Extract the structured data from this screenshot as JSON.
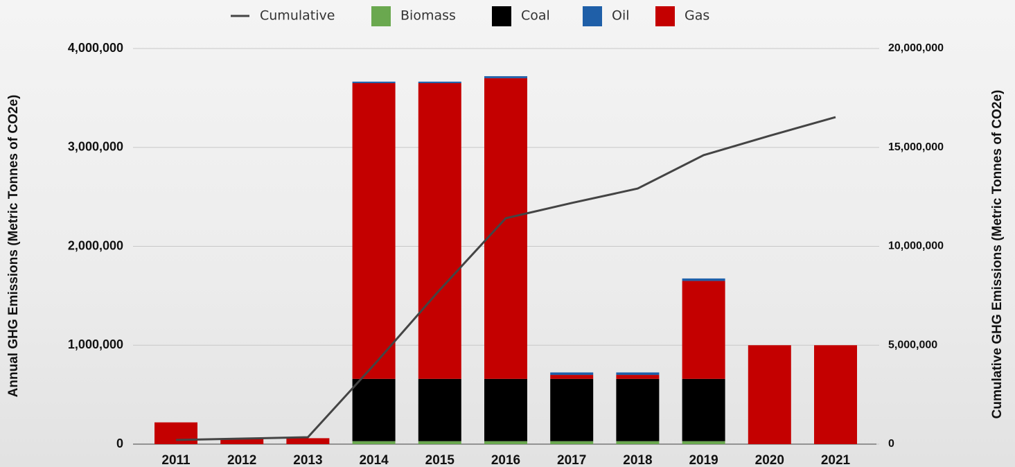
{
  "chart_data": {
    "type": "bar",
    "stacked": true,
    "categories": [
      "2011",
      "2012",
      "2013",
      "2014",
      "2015",
      "2016",
      "2017",
      "2018",
      "2019",
      "2020",
      "2021"
    ],
    "y_label": "Annual GHG Emissions (Metric Tonnes of CO2e)",
    "y2_label": "Cumulative GHG Emissions (Metric Tonnes of CO2e)",
    "series": [
      {
        "name": "Cumulative",
        "type": "line",
        "axis": "y2",
        "color": "#444444",
        "values": [
          210000,
          280000,
          350000,
          4000000,
          7800000,
          11420000,
          12190000,
          12920000,
          14610000,
          15590000,
          16530000
        ]
      },
      {
        "name": "Biomass",
        "color": "#6aa84f",
        "values": [
          0,
          0,
          0,
          30000,
          30000,
          30000,
          30000,
          30000,
          30000,
          0,
          0
        ]
      },
      {
        "name": "Coal",
        "color": "#000000",
        "values": [
          0,
          0,
          0,
          630000,
          630000,
          630000,
          630000,
          630000,
          630000,
          0,
          0
        ]
      },
      {
        "name": "Oil",
        "color": "#1f5fa8",
        "values": [
          0,
          0,
          0,
          15000,
          15000,
          20000,
          25000,
          25000,
          25000,
          0,
          0
        ]
      },
      {
        "name": "Gas",
        "color": "#c40000",
        "values": [
          220000,
          60000,
          60000,
          2990000,
          2990000,
          3040000,
          40000,
          40000,
          990000,
          1000000,
          1000000
        ]
      }
    ],
    "ylim": [
      0,
      4000000
    ],
    "yticks": [
      0,
      {
        "value": 1000000,
        "label": "1,000,000"
      },
      {
        "value": 2000000,
        "label": "2,000,000"
      },
      {
        "value": 3000000,
        "label": "3,000,000"
      },
      {
        "value": 4000000,
        "label": "4,000,000"
      }
    ],
    "y2lim": [
      0,
      20000000
    ],
    "y2ticks": [
      0,
      {
        "value": 5000000,
        "label": "5,000,000"
      },
      {
        "value": 10000000,
        "label": "10,000,000"
      },
      {
        "value": 15000000,
        "label": "15,000,000"
      },
      {
        "value": 20000000,
        "label": "20,000,000"
      }
    ],
    "grid": true,
    "legend": "top"
  }
}
